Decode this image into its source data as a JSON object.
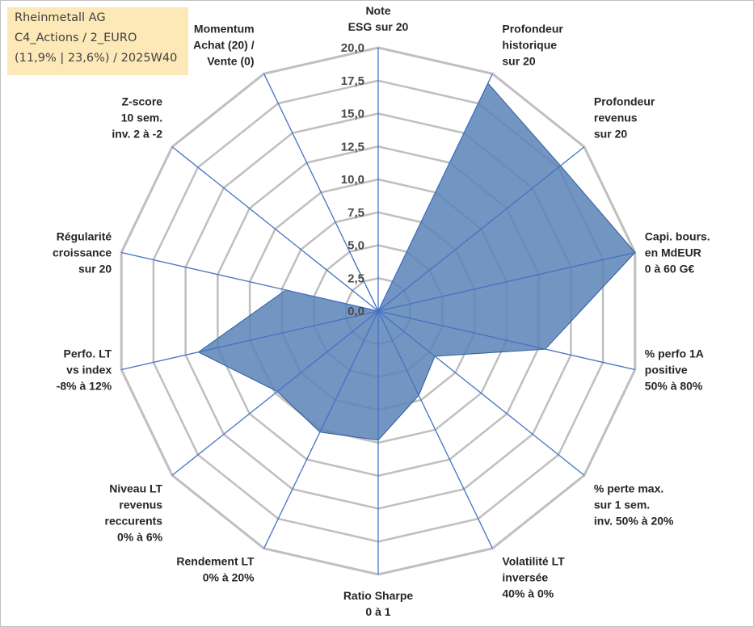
{
  "header": {
    "company": "Rheinmetall AG",
    "category": "C4_Actions / 2_EURO",
    "period": "(11,9% | 23,6%) / 2025W40"
  },
  "colors": {
    "fill": "#5b83b7",
    "stroke": "#2e5c99",
    "spoke": "#4472c4",
    "grid": "#bfbfbf",
    "title_bg": "#fde9b8"
  },
  "chart_data": {
    "type": "radar",
    "title": "Rheinmetall AG",
    "rmax": 20,
    "ticks": [
      "0,0",
      "2,5",
      "5,0",
      "7,5",
      "10,0",
      "12,5",
      "15,0",
      "17,5",
      "20,0"
    ],
    "categories": [
      [
        "Note",
        "ESG sur 20"
      ],
      [
        "Profondeur",
        "historique",
        "sur 20"
      ],
      [
        "Profondeur",
        "revenus",
        "sur 20"
      ],
      [
        "Capi. bours.",
        "en MdEUR",
        "0 à 60 G€"
      ],
      [
        "% perfo 1A",
        "positive",
        "50% à 80%"
      ],
      [
        "% perte max.",
        "sur 1 sem.",
        "inv. 50% à 20%"
      ],
      [
        "Volatilité LT",
        "inversée",
        "40% à 0%"
      ],
      [
        "Ratio Sharpe",
        "0 à 1"
      ],
      [
        "Rendement LT",
        "0% à 20%"
      ],
      [
        "Niveau LT",
        "revenus",
        "reccurents",
        "0% à 6%"
      ],
      [
        "Perfo. LT",
        "vs index",
        "-8% à 12%"
      ],
      [
        "Régularité",
        "croissance",
        "sur 20"
      ],
      [
        "Z-score",
        "10 sem.",
        "inv. 2 à -2"
      ],
      [
        "Momentum",
        "Achat (20) /",
        "Vente (0)"
      ]
    ],
    "series": [
      {
        "name": "Rheinmetall AG",
        "values": [
          0.0,
          19.2,
          17.7,
          20.0,
          13.0,
          5.5,
          7.1,
          9.8,
          10.2,
          9.8,
          14.0,
          7.2,
          0.0,
          4.4
        ]
      }
    ]
  }
}
